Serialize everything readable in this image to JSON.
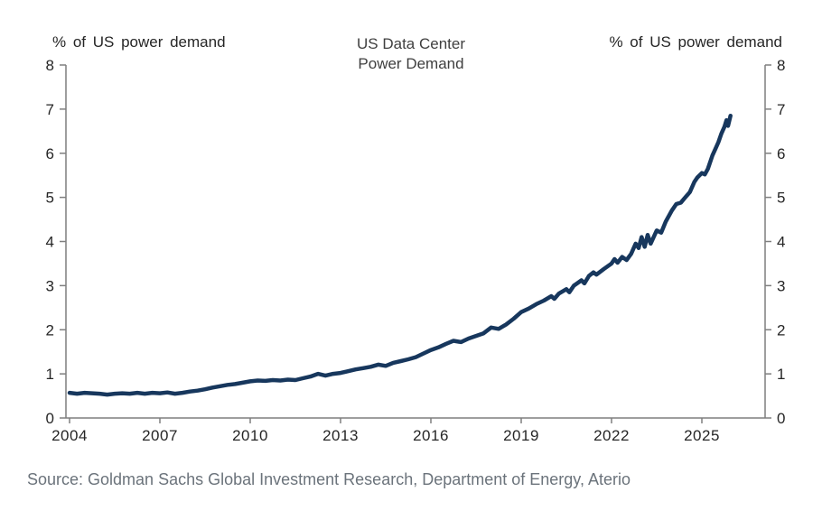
{
  "chart": {
    "title_line1": "US Data Center",
    "title_line2": "Power Demand",
    "left_axis_label": "% of US power demand",
    "right_axis_label": "% of US power demand",
    "source": "Source: Goldman Sachs Global Investment Research, Department of Energy, Aterio"
  },
  "chart_data": {
    "type": "line",
    "title": "US Data Center Power Demand",
    "xlabel": "",
    "ylabel": "% of US power demand",
    "ylim": [
      0,
      8
    ],
    "xlim": [
      2003.88,
      2027.1
    ],
    "y_ticks": [
      0,
      1,
      2,
      3,
      4,
      5,
      6,
      7,
      8
    ],
    "x_ticks": [
      2004,
      2007,
      2010,
      2013,
      2016,
      2019,
      2022,
      2025
    ],
    "grid": false,
    "legend_position": "none",
    "colors": {
      "line": "#17375d",
      "axis": "#7f7f7f",
      "tick_text": "#262626",
      "title_text": "#3f3f3f",
      "source_text": "#6b737b"
    },
    "series": [
      {
        "name": "US data center power demand (% of US power demand)",
        "points": [
          [
            2004.0,
            0.57
          ],
          [
            2004.25,
            0.55
          ],
          [
            2004.5,
            0.57
          ],
          [
            2004.75,
            0.56
          ],
          [
            2005.0,
            0.55
          ],
          [
            2005.25,
            0.53
          ],
          [
            2005.5,
            0.55
          ],
          [
            2005.75,
            0.56
          ],
          [
            2006.0,
            0.55
          ],
          [
            2006.25,
            0.57
          ],
          [
            2006.5,
            0.55
          ],
          [
            2006.75,
            0.57
          ],
          [
            2007.0,
            0.56
          ],
          [
            2007.25,
            0.58
          ],
          [
            2007.5,
            0.55
          ],
          [
            2007.75,
            0.57
          ],
          [
            2008.0,
            0.6
          ],
          [
            2008.25,
            0.62
          ],
          [
            2008.5,
            0.65
          ],
          [
            2008.75,
            0.69
          ],
          [
            2009.0,
            0.72
          ],
          [
            2009.25,
            0.75
          ],
          [
            2009.5,
            0.77
          ],
          [
            2009.75,
            0.8
          ],
          [
            2010.0,
            0.83
          ],
          [
            2010.25,
            0.85
          ],
          [
            2010.5,
            0.84
          ],
          [
            2010.75,
            0.86
          ],
          [
            2011.0,
            0.85
          ],
          [
            2011.25,
            0.87
          ],
          [
            2011.5,
            0.86
          ],
          [
            2011.75,
            0.9
          ],
          [
            2012.0,
            0.94
          ],
          [
            2012.25,
            1.0
          ],
          [
            2012.5,
            0.96
          ],
          [
            2012.75,
            1.0
          ],
          [
            2013.0,
            1.02
          ],
          [
            2013.25,
            1.06
          ],
          [
            2013.5,
            1.1
          ],
          [
            2013.75,
            1.13
          ],
          [
            2014.0,
            1.16
          ],
          [
            2014.25,
            1.21
          ],
          [
            2014.5,
            1.18
          ],
          [
            2014.75,
            1.25
          ],
          [
            2015.0,
            1.29
          ],
          [
            2015.25,
            1.33
          ],
          [
            2015.5,
            1.38
          ],
          [
            2015.75,
            1.46
          ],
          [
            2016.0,
            1.54
          ],
          [
            2016.25,
            1.6
          ],
          [
            2016.5,
            1.68
          ],
          [
            2016.75,
            1.75
          ],
          [
            2017.0,
            1.72
          ],
          [
            2017.25,
            1.8
          ],
          [
            2017.5,
            1.86
          ],
          [
            2017.75,
            1.92
          ],
          [
            2018.0,
            2.05
          ],
          [
            2018.25,
            2.02
          ],
          [
            2018.5,
            2.12
          ],
          [
            2018.75,
            2.25
          ],
          [
            2019.0,
            2.4
          ],
          [
            2019.25,
            2.48
          ],
          [
            2019.5,
            2.58
          ],
          [
            2019.75,
            2.66
          ],
          [
            2020.0,
            2.76
          ],
          [
            2020.1,
            2.7
          ],
          [
            2020.25,
            2.82
          ],
          [
            2020.5,
            2.92
          ],
          [
            2020.6,
            2.85
          ],
          [
            2020.75,
            3.0
          ],
          [
            2021.0,
            3.12
          ],
          [
            2021.1,
            3.05
          ],
          [
            2021.25,
            3.22
          ],
          [
            2021.4,
            3.3
          ],
          [
            2021.5,
            3.25
          ],
          [
            2021.75,
            3.38
          ],
          [
            2022.0,
            3.5
          ],
          [
            2022.1,
            3.6
          ],
          [
            2022.2,
            3.52
          ],
          [
            2022.35,
            3.65
          ],
          [
            2022.5,
            3.58
          ],
          [
            2022.65,
            3.72
          ],
          [
            2022.8,
            3.95
          ],
          [
            2022.9,
            3.85
          ],
          [
            2023.0,
            4.1
          ],
          [
            2023.1,
            3.88
          ],
          [
            2023.2,
            4.15
          ],
          [
            2023.3,
            3.95
          ],
          [
            2023.5,
            4.25
          ],
          [
            2023.65,
            4.2
          ],
          [
            2023.8,
            4.45
          ],
          [
            2024.0,
            4.7
          ],
          [
            2024.15,
            4.85
          ],
          [
            2024.3,
            4.88
          ],
          [
            2024.45,
            5.0
          ],
          [
            2024.6,
            5.12
          ],
          [
            2024.75,
            5.35
          ],
          [
            2024.85,
            5.45
          ],
          [
            2025.0,
            5.55
          ],
          [
            2025.1,
            5.52
          ],
          [
            2025.2,
            5.65
          ],
          [
            2025.35,
            5.95
          ],
          [
            2025.45,
            6.1
          ],
          [
            2025.55,
            6.25
          ],
          [
            2025.65,
            6.45
          ],
          [
            2025.75,
            6.6
          ],
          [
            2025.82,
            6.75
          ],
          [
            2025.87,
            6.62
          ],
          [
            2025.95,
            6.85
          ]
        ]
      }
    ]
  }
}
